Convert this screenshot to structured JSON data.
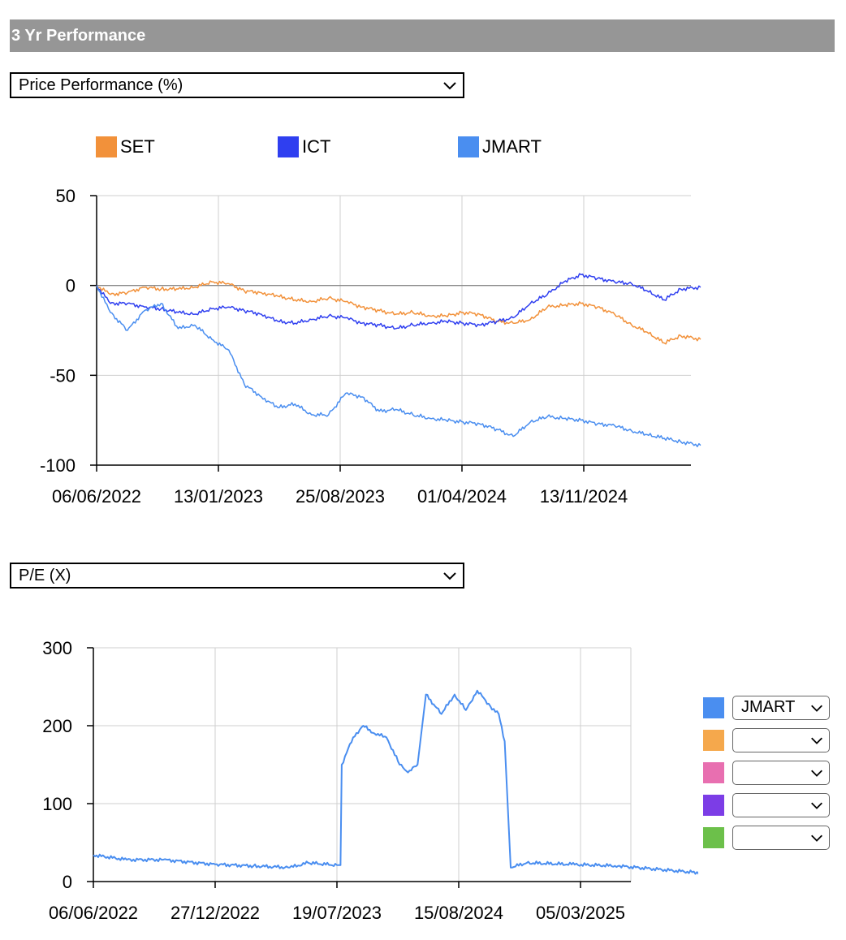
{
  "header": {
    "title": "3 Yr Performance"
  },
  "selectors": {
    "performance": {
      "value": "Price Performance (%)"
    },
    "ratio": {
      "value": "P/E (X)"
    }
  },
  "legend": {
    "items": [
      {
        "label": "SET",
        "color": "#f2913a"
      },
      {
        "label": "ICT",
        "color": "#2f3ff0"
      },
      {
        "label": "JMART",
        "color": "#4a8ef0"
      }
    ]
  },
  "comparison": {
    "rows": [
      {
        "color": "#4a8ef0",
        "value": "JMART"
      },
      {
        "color": "#f5a84c",
        "value": ""
      },
      {
        "color": "#e86fb0",
        "value": ""
      },
      {
        "color": "#7c3de6",
        "value": ""
      },
      {
        "color": "#6cc04a",
        "value": ""
      }
    ]
  },
  "chart_data": [
    {
      "type": "line",
      "title": "",
      "xlabel": "",
      "ylabel": "",
      "ylim": [
        -100,
        50
      ],
      "yticks": [
        50,
        0,
        -50,
        -100
      ],
      "x_ticks": [
        "06/06/2022",
        "13/01/2023",
        "25/08/2023",
        "01/04/2024",
        "13/11/2024"
      ],
      "x_range": [
        "06/06/2022",
        "06/06/2025"
      ],
      "grid": true,
      "legend": "top",
      "series": [
        {
          "name": "SET",
          "color": "#f2913a",
          "points": [
            [
              "06/06/2022",
              0
            ],
            [
              "01/07/2022",
              -5
            ],
            [
              "01/08/2022",
              -4
            ],
            [
              "01/09/2022",
              -1
            ],
            [
              "01/10/2022",
              -2
            ],
            [
              "01/11/2022",
              -2
            ],
            [
              "01/12/2022",
              -1
            ],
            [
              "01/01/2023",
              2
            ],
            [
              "01/02/2023",
              1
            ],
            [
              "01/03/2023",
              -3
            ],
            [
              "01/04/2023",
              -4
            ],
            [
              "01/05/2023",
              -6
            ],
            [
              "01/06/2023",
              -8
            ],
            [
              "01/07/2023",
              -9
            ],
            [
              "01/08/2023",
              -7
            ],
            [
              "01/09/2023",
              -9
            ],
            [
              "01/10/2023",
              -12
            ],
            [
              "01/11/2023",
              -14
            ],
            [
              "01/12/2023",
              -16
            ],
            [
              "01/01/2024",
              -15
            ],
            [
              "01/02/2024",
              -17
            ],
            [
              "01/03/2024",
              -17
            ],
            [
              "01/04/2024",
              -15
            ],
            [
              "01/05/2024",
              -16
            ],
            [
              "01/06/2024",
              -20
            ],
            [
              "01/07/2024",
              -21
            ],
            [
              "01/08/2024",
              -19
            ],
            [
              "01/09/2024",
              -12
            ],
            [
              "01/10/2024",
              -11
            ],
            [
              "01/11/2024",
              -10
            ],
            [
              "01/12/2024",
              -12
            ],
            [
              "01/01/2025",
              -16
            ],
            [
              "01/02/2025",
              -22
            ],
            [
              "01/03/2025",
              -26
            ],
            [
              "01/04/2025",
              -32
            ],
            [
              "01/05/2025",
              -28
            ],
            [
              "06/06/2025",
              -30
            ]
          ]
        },
        {
          "name": "ICT",
          "color": "#2f3ff0",
          "points": [
            [
              "06/06/2022",
              0
            ],
            [
              "01/07/2022",
              -10
            ],
            [
              "01/08/2022",
              -10
            ],
            [
              "01/09/2022",
              -12
            ],
            [
              "01/10/2022",
              -13
            ],
            [
              "01/11/2022",
              -15
            ],
            [
              "01/12/2022",
              -16
            ],
            [
              "01/01/2023",
              -13
            ],
            [
              "01/02/2023",
              -12
            ],
            [
              "01/03/2023",
              -14
            ],
            [
              "01/04/2023",
              -16
            ],
            [
              "01/05/2023",
              -20
            ],
            [
              "01/06/2023",
              -21
            ],
            [
              "01/07/2023",
              -19
            ],
            [
              "01/08/2023",
              -17
            ],
            [
              "01/09/2023",
              -18
            ],
            [
              "01/10/2023",
              -21
            ],
            [
              "01/11/2023",
              -22
            ],
            [
              "01/12/2023",
              -24
            ],
            [
              "01/01/2024",
              -22
            ],
            [
              "01/02/2024",
              -21
            ],
            [
              "01/03/2024",
              -20
            ],
            [
              "01/04/2024",
              -21
            ],
            [
              "01/05/2024",
              -22
            ],
            [
              "01/06/2024",
              -20
            ],
            [
              "01/07/2024",
              -18
            ],
            [
              "01/08/2024",
              -10
            ],
            [
              "01/09/2024",
              -5
            ],
            [
              "01/10/2024",
              2
            ],
            [
              "01/11/2024",
              6
            ],
            [
              "01/12/2024",
              4
            ],
            [
              "01/01/2025",
              2
            ],
            [
              "01/02/2025",
              1
            ],
            [
              "01/03/2025",
              -3
            ],
            [
              "01/04/2025",
              -8
            ],
            [
              "01/05/2025",
              -2
            ],
            [
              "06/06/2025",
              -1
            ]
          ]
        },
        {
          "name": "JMART",
          "color": "#4a8ef0",
          "points": [
            [
              "06/06/2022",
              0
            ],
            [
              "01/07/2022",
              -15
            ],
            [
              "01/08/2022",
              -25
            ],
            [
              "01/09/2022",
              -14
            ],
            [
              "01/10/2022",
              -10
            ],
            [
              "01/11/2022",
              -24
            ],
            [
              "01/12/2022",
              -22
            ],
            [
              "01/01/2023",
              -30
            ],
            [
              "01/02/2023",
              -36
            ],
            [
              "01/03/2023",
              -55
            ],
            [
              "01/04/2023",
              -62
            ],
            [
              "01/05/2023",
              -68
            ],
            [
              "01/06/2023",
              -66
            ],
            [
              "01/07/2023",
              -72
            ],
            [
              "01/08/2023",
              -72
            ],
            [
              "01/09/2023",
              -60
            ],
            [
              "01/10/2023",
              -62
            ],
            [
              "01/11/2023",
              -70
            ],
            [
              "01/12/2023",
              -69
            ],
            [
              "01/01/2024",
              -72
            ],
            [
              "01/02/2024",
              -74
            ],
            [
              "01/03/2024",
              -75
            ],
            [
              "01/04/2024",
              -76
            ],
            [
              "01/05/2024",
              -77
            ],
            [
              "01/06/2024",
              -80
            ],
            [
              "01/07/2024",
              -84
            ],
            [
              "01/08/2024",
              -76
            ],
            [
              "01/09/2024",
              -73
            ],
            [
              "01/10/2024",
              -74
            ],
            [
              "01/11/2024",
              -75
            ],
            [
              "01/12/2024",
              -77
            ],
            [
              "01/01/2025",
              -78
            ],
            [
              "01/02/2025",
              -81
            ],
            [
              "01/03/2025",
              -83
            ],
            [
              "01/04/2025",
              -85
            ],
            [
              "01/05/2025",
              -87
            ],
            [
              "06/06/2025",
              -89
            ]
          ]
        }
      ]
    },
    {
      "type": "line",
      "title": "",
      "xlabel": "",
      "ylabel": "",
      "ylim": [
        0,
        300
      ],
      "yticks": [
        300,
        200,
        100,
        0
      ],
      "x_ticks": [
        "06/06/2022",
        "27/12/2022",
        "19/07/2023",
        "15/08/2024",
        "05/03/2025"
      ],
      "grid": true,
      "legend": "right",
      "series": [
        {
          "name": "JMART",
          "color": "#4a8ef0",
          "points": [
            [
              "06/06/2022",
              34
            ],
            [
              "01/08/2022",
              28
            ],
            [
              "01/10/2022",
              28
            ],
            [
              "27/12/2022",
              22
            ],
            [
              "01/03/2023",
              20
            ],
            [
              "01/05/2023",
              18
            ],
            [
              "01/06/2023",
              24
            ],
            [
              "19/07/2023",
              21
            ],
            [
              "25/07/2023",
              21
            ],
            [
              "27/07/2023",
              150
            ],
            [
              "15/08/2023",
              185
            ],
            [
              "01/09/2023",
              200
            ],
            [
              "20/09/2023",
              190
            ],
            [
              "10/10/2023",
              185
            ],
            [
              "01/11/2023",
              150
            ],
            [
              "15/11/2023",
              140
            ],
            [
              "01/12/2023",
              150
            ],
            [
              "15/12/2023",
              240
            ],
            [
              "10/01/2024",
              215
            ],
            [
              "01/02/2024",
              240
            ],
            [
              "20/02/2024",
              220
            ],
            [
              "10/03/2024",
              245
            ],
            [
              "01/04/2024",
              225
            ],
            [
              "15/04/2024",
              215
            ],
            [
              "25/04/2024",
              180
            ],
            [
              "05/05/2024",
              18
            ],
            [
              "01/06/2024",
              24
            ],
            [
              "15/08/2024",
              22
            ],
            [
              "01/11/2024",
              20
            ],
            [
              "05/03/2025",
              12
            ],
            [
              "01/05/2025",
              10
            ],
            [
              "06/06/2025",
              10
            ]
          ]
        }
      ]
    }
  ]
}
